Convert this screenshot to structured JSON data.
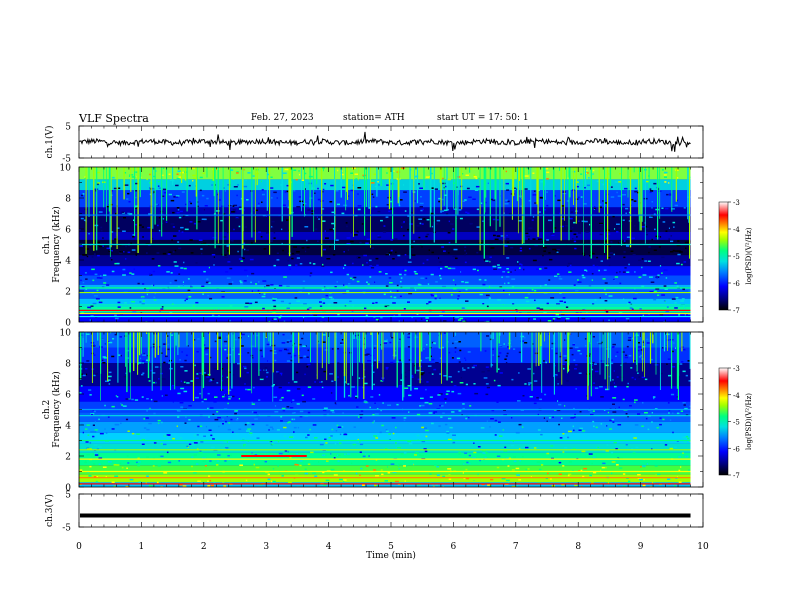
{
  "header": {
    "title": "VLF  Spectra",
    "date": "Feb. 27, 2023",
    "station": "station= ATH",
    "start": "start  UT  =    17: 50: 1"
  },
  "chart_data": {
    "type": "heatmap",
    "xlabel": "Time  (min)",
    "x_ticks": [
      "0",
      "1",
      "2",
      "3",
      "4",
      "5",
      "6",
      "7",
      "8",
      "9",
      "10"
    ],
    "xlim": [
      0,
      10
    ],
    "panels": [
      {
        "id": "ch1_waveform",
        "type": "line",
        "ylabel": "ch.1(V)",
        "ylim": [
          -5,
          5
        ],
        "y_ticks": [
          "5",
          "-5"
        ],
        "baseline": 0,
        "end_min": 9.8
      },
      {
        "id": "ch1_spectrogram",
        "type": "heatmap",
        "ylabel_top": "ch.1",
        "ylabel": "Frequency  (kHz)",
        "ylim": [
          0,
          10
        ],
        "y_ticks": [
          "10",
          "8",
          "6",
          "4",
          "2",
          "0"
        ],
        "end_min": 9.8,
        "colorbar": {
          "label": "log(PSD)(V²/Hz)",
          "range": [
            -7,
            -3
          ],
          "ticks": [
            "-3",
            "-4",
            "-5",
            "-6",
            "-7"
          ]
        }
      },
      {
        "id": "ch2_spectrogram",
        "type": "heatmap",
        "ylabel_top": "ch.2",
        "ylabel": "Frequency  (kHz)",
        "ylim": [
          0,
          10
        ],
        "y_ticks": [
          "10",
          "8",
          "6",
          "4",
          "2",
          "0"
        ],
        "end_min": 9.8,
        "colorbar": {
          "label": "log(PSD)(V²/Hz)",
          "range": [
            -7,
            -3
          ],
          "ticks": [
            "-3",
            "-4",
            "-5",
            "-6",
            "-7"
          ]
        }
      },
      {
        "id": "ch3_waveform",
        "type": "line",
        "ylabel": "ch.3(V)",
        "ylim": [
          -5,
          5
        ],
        "y_ticks": [
          "5",
          "-5"
        ],
        "baseline": -1.5,
        "end_min": 9.8
      }
    ],
    "colormap": [
      "#000000",
      "#00007a",
      "#0000ff",
      "#0080ff",
      "#00e0e0",
      "#00ff80",
      "#a0ff00",
      "#ffff00",
      "#ff8000",
      "#ff0000",
      "#ffffff"
    ]
  }
}
